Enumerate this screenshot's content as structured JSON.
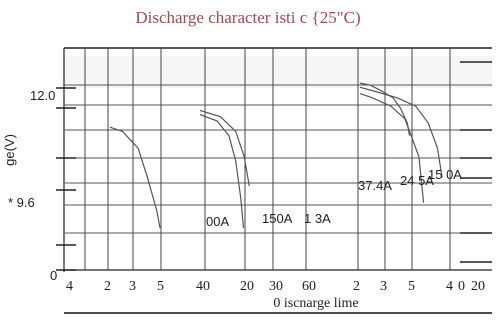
{
  "chart_data": {
    "type": "line",
    "title": "Discharge character isti c {25\"C)",
    "xlabel": "0 iscnarge lime",
    "ylabel": "ge(V)",
    "y_tick_labels": [
      "12.0",
      "* 9.6",
      "0"
    ],
    "x_tick_labels": [
      "4",
      "2",
      "3",
      "5",
      "40",
      "20",
      "30",
      "60",
      "2",
      "3",
      "5",
      "4",
      "0",
      "20"
    ],
    "grid": true,
    "series": [
      {
        "name": "37.4A",
        "label": "37.4A",
        "points": [
          [
            0.0,
            12.8
          ],
          [
            0.4,
            12.7
          ],
          [
            1.0,
            12.5
          ],
          [
            1.45,
            12.2
          ],
          [
            1.9,
            11.3
          ],
          [
            2.05,
            10.2
          ]
        ]
      },
      {
        "name": "24 5A",
        "label": "24 5A",
        "points": [
          [
            0.0,
            12.95
          ],
          [
            0.5,
            12.85
          ],
          [
            1.2,
            12.7
          ],
          [
            1.8,
            12.5
          ],
          [
            2.2,
            12.1
          ],
          [
            2.5,
            11.5
          ],
          [
            2.65,
            10.8
          ]
        ]
      },
      {
        "name": "15 0A",
        "label": "15 0A",
        "points": [
          [
            0.0,
            13.05
          ],
          [
            0.7,
            13.0
          ],
          [
            1.5,
            12.85
          ],
          [
            2.2,
            12.7
          ],
          [
            2.7,
            12.45
          ],
          [
            3.15,
            12.1
          ],
          [
            3.3,
            11.8
          ]
        ]
      },
      {
        "name": "00A",
        "label": "00A",
        "points": [
          [
            0.0,
            12.0
          ],
          [
            0.2,
            11.9
          ],
          [
            0.45,
            11.5
          ],
          [
            0.6,
            10.8
          ],
          [
            0.75,
            10.0
          ],
          [
            0.8,
            9.6
          ]
        ]
      },
      {
        "name": "150A",
        "label": "150A",
        "points": [
          [
            0.0,
            12.3
          ],
          [
            0.5,
            12.15
          ],
          [
            0.85,
            11.8
          ],
          [
            1.05,
            11.2
          ],
          [
            1.2,
            10.3
          ],
          [
            1.28,
            9.6
          ]
        ]
      },
      {
        "name": "1 3A",
        "label": "1 3A",
        "points": [
          [
            0.0,
            12.4
          ],
          [
            0.6,
            12.25
          ],
          [
            1.05,
            11.9
          ],
          [
            1.3,
            11.3
          ],
          [
            1.45,
            10.6
          ]
        ]
      }
    ]
  }
}
